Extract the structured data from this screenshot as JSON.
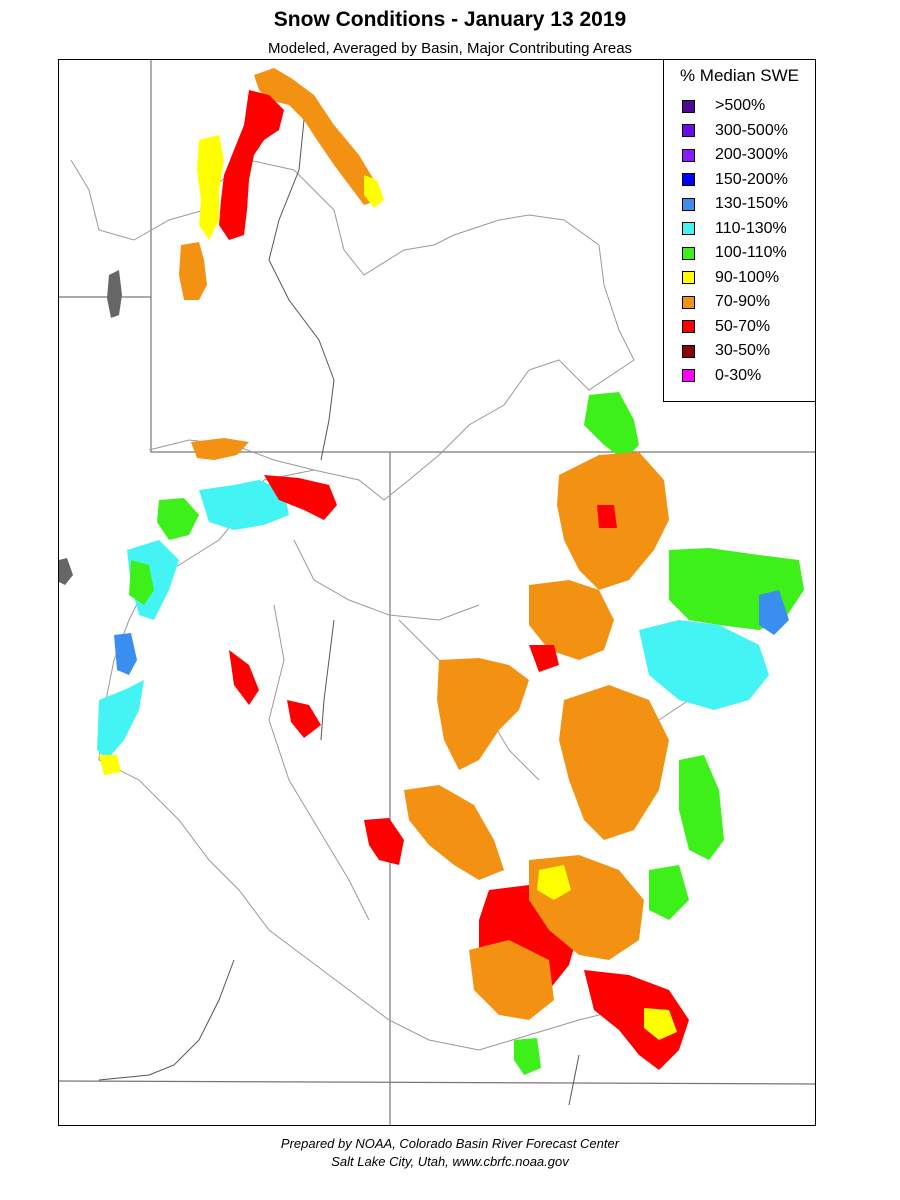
{
  "title": "Snow Conditions - January 13 2019",
  "subtitle": "Modeled, Averaged by Basin, Major Contributing Areas",
  "legend": {
    "title": "% Median SWE",
    "items": [
      {
        "label": ">500%",
        "color": "#4b0a8f"
      },
      {
        "label": "300-500%",
        "color": "#6a0ae6"
      },
      {
        "label": "200-300%",
        "color": "#8a1aff"
      },
      {
        "label": "150-200%",
        "color": "#0000ff"
      },
      {
        "label": "130-150%",
        "color": "#3a8eef"
      },
      {
        "label": "110-130%",
        "color": "#44f4f4"
      },
      {
        "label": "100-110%",
        "color": "#3ef01a"
      },
      {
        "label": "90-100%",
        "color": "#ffff00"
      },
      {
        "label": "70-90%",
        "color": "#f39212"
      },
      {
        "label": "50-70%",
        "color": "#ff0000"
      },
      {
        "label": "30-50%",
        "color": "#8b0000"
      },
      {
        "label": "0-30%",
        "color": "#ff00ff"
      }
    ]
  },
  "credits": {
    "line1": "Prepared by NOAA, Colorado Basin River Forecast Center",
    "line2": "Salt Lake City, Utah, www.cbrfc.noaa.gov"
  }
}
